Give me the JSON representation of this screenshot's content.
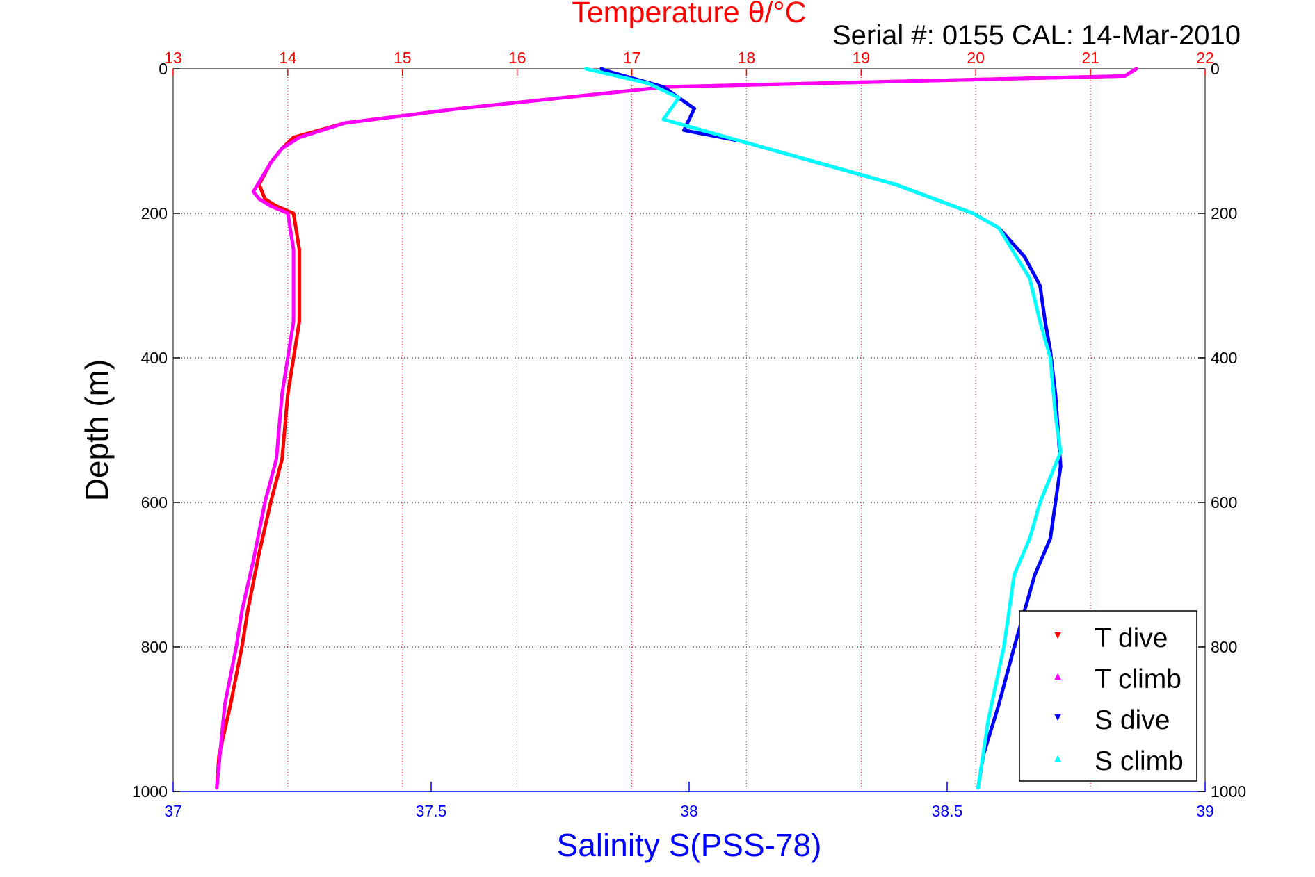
{
  "chart_data": {
    "type": "scatter",
    "title": "Temperature θ/°C",
    "subtitle": "Serial #: 0155  CAL: 14-Mar-2010",
    "xlabel_bottom": "Salinity S(PSS-78)",
    "xlabel_top": "Temperature θ/°C",
    "ylabel": "Depth (m)",
    "x_bottom_lim": [
      37,
      39
    ],
    "x_top_lim": [
      13,
      22
    ],
    "ylim": [
      0,
      1000
    ],
    "y_reversed": true,
    "grid": true,
    "legend_position": "bottom-right",
    "x_bottom_ticks": [
      "37",
      "37.5",
      "38",
      "38.5",
      "39"
    ],
    "x_top_ticks": [
      "13",
      "14",
      "15",
      "16",
      "17",
      "18",
      "19",
      "20",
      "21",
      "22"
    ],
    "y_ticks": [
      "0",
      "200",
      "400",
      "600",
      "800",
      "1000"
    ],
    "colors": {
      "temperature_axis": "#ff0000",
      "salinity_axis": "#0000ff",
      "t_dive": "#ff0000",
      "t_climb": "#ff00ff",
      "s_dive": "#0000ff",
      "s_climb": "#00ffff"
    },
    "series": [
      {
        "name": "T dive",
        "axis": "temperature",
        "x": [
          21.4,
          21.3,
          17.3,
          15.5,
          14.5,
          14.05,
          13.95,
          13.85,
          13.75,
          13.8,
          13.9,
          14.05,
          14.1,
          14.1,
          14.0,
          13.95,
          13.85,
          13.75,
          13.65,
          13.6,
          13.5,
          13.4,
          13.38
        ],
        "y": [
          0,
          10,
          25,
          55,
          75,
          95,
          110,
          130,
          160,
          180,
          190,
          200,
          250,
          350,
          450,
          540,
          600,
          670,
          750,
          800,
          880,
          950,
          995
        ]
      },
      {
        "name": "T climb",
        "axis": "temperature",
        "x": [
          21.4,
          21.3,
          17.3,
          15.5,
          14.5,
          14.1,
          13.95,
          13.85,
          13.7,
          13.75,
          13.85,
          14.0,
          14.05,
          14.05,
          13.95,
          13.9,
          13.8,
          13.7,
          13.6,
          13.55,
          13.45,
          13.38
        ],
        "y": [
          0,
          10,
          25,
          55,
          75,
          95,
          110,
          130,
          170,
          180,
          190,
          200,
          250,
          350,
          450,
          540,
          600,
          680,
          750,
          800,
          880,
          995
        ]
      },
      {
        "name": "S dive",
        "axis": "salinity",
        "x": [
          37.83,
          37.85,
          37.95,
          38.01,
          37.99,
          38.1,
          38.25,
          38.4,
          38.55,
          38.6,
          38.65,
          38.68,
          38.69,
          38.7,
          38.71,
          38.72,
          38.7,
          38.67,
          38.65,
          38.63,
          38.6,
          38.57,
          38.56
        ],
        "y": [
          0,
          5,
          25,
          55,
          85,
          100,
          130,
          160,
          200,
          220,
          260,
          300,
          350,
          390,
          450,
          550,
          650,
          700,
          750,
          800,
          880,
          950,
          995
        ]
      },
      {
        "name": "S climb",
        "axis": "salinity",
        "x": [
          37.8,
          37.92,
          37.98,
          37.95,
          38.1,
          38.25,
          38.4,
          38.55,
          38.6,
          38.66,
          38.68,
          38.7,
          38.71,
          38.72,
          38.68,
          38.66,
          38.63,
          38.61,
          38.58,
          38.56
        ],
        "y": [
          0,
          20,
          40,
          70,
          100,
          130,
          160,
          200,
          220,
          290,
          350,
          400,
          480,
          530,
          600,
          650,
          700,
          800,
          900,
          995
        ]
      }
    ]
  }
}
